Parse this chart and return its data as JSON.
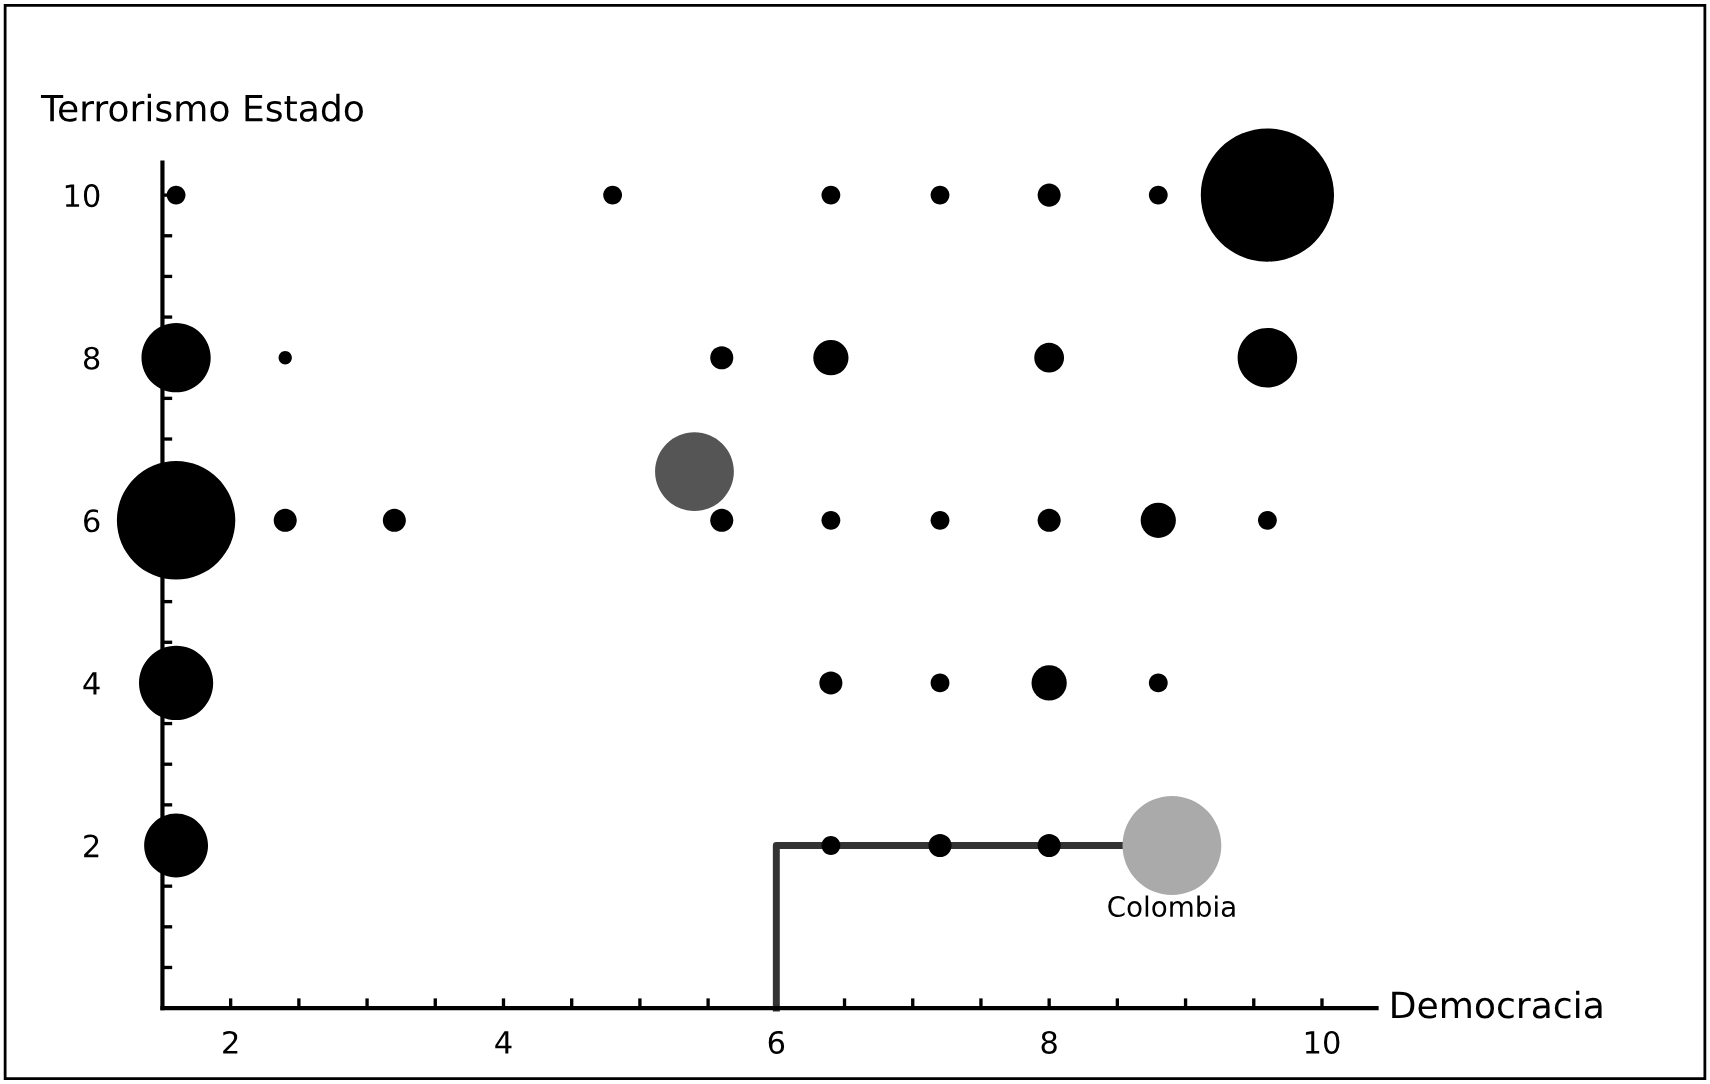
{
  "chart_data": {
    "type": "bubble",
    "xlabel": "Democracia",
    "ylabel": "Terrorismo Estado",
    "xlim": [
      1.5,
      10.4
    ],
    "ylim": [
      0,
      10.4
    ],
    "xticks": [
      2,
      {
        "value": 2.5,
        "label": null
      },
      {
        "value": 3,
        "label": null
      },
      {
        "value": 3.5,
        "label": null
      },
      4,
      {
        "value": 4.5,
        "label": null
      },
      {
        "value": 5,
        "label": null
      },
      {
        "value": 5.5,
        "label": null
      },
      6,
      {
        "value": 6.5,
        "label": null
      },
      {
        "value": 7,
        "label": null
      },
      {
        "value": 7.5,
        "label": null
      },
      8,
      {
        "value": 8.5,
        "label": null
      },
      {
        "value": 9,
        "label": null
      },
      {
        "value": 9.5,
        "label": null
      },
      10
    ],
    "yticks": [
      {
        "value": 0.5,
        "label": null
      },
      {
        "value": 1,
        "label": null
      },
      {
        "value": 1.5,
        "label": null
      },
      2,
      {
        "value": 2.5,
        "label": null
      },
      {
        "value": 3,
        "label": null
      },
      {
        "value": 3.5,
        "label": null
      },
      4,
      {
        "value": 4.5,
        "label": null
      },
      {
        "value": 5,
        "label": null
      },
      {
        "value": 5.5,
        "label": null
      },
      6,
      {
        "value": 6.5,
        "label": null
      },
      {
        "value": 7,
        "label": null
      },
      {
        "value": 7.5,
        "label": null
      },
      8,
      {
        "value": 8.5,
        "label": null
      },
      {
        "value": 9,
        "label": null
      },
      {
        "value": 9.5,
        "label": null
      },
      10
    ],
    "grid": false,
    "annotations": [
      {
        "text": "Colombia",
        "x": 8.9,
        "y": 2
      }
    ],
    "series": [
      {
        "color": "#000000",
        "x": [
          1.6,
          4.8,
          6.4,
          7.2,
          8.0,
          8.8,
          9.6,
          1.6,
          2.4,
          5.6,
          6.4,
          8.0,
          9.6,
          1.6,
          2.4,
          3.2,
          5.6,
          6.4,
          7.2,
          8.0,
          8.8,
          9.6,
          1.6,
          6.4,
          7.2,
          8.0,
          8.8,
          1.6,
          6.4,
          7.2,
          8.0
        ],
        "values": [
          10,
          10,
          10,
          10,
          10,
          10,
          10,
          8,
          8,
          8,
          8,
          8,
          8,
          6,
          6,
          6,
          6,
          6,
          6,
          6,
          6,
          6,
          4,
          4,
          4,
          4,
          4,
          2,
          2,
          2,
          2
        ],
        "sizes": [
          0.02,
          0.02,
          0.02,
          0.02,
          0.03,
          0.02,
          1,
          0.27,
          0.01,
          0.03,
          0.07,
          0.05,
          0.2,
          0.79,
          0.03,
          0.03,
          0.03,
          0.02,
          0.02,
          0.03,
          0.07,
          0.02,
          0.31,
          0.03,
          0.02,
          0.07,
          0.02,
          0.23,
          0.02,
          0.03,
          0.03
        ]
      },
      {
        "color": "#555555",
        "x": [
          5.4
        ],
        "values": [
          6.6
        ],
        "sizes": [
          0.35
        ]
      },
      {
        "color": "#aaaaaa",
        "x": [
          8.9
        ],
        "values": [
          2
        ],
        "sizes": [
          0.55
        ]
      },
      {
        "type": "line",
        "color": "#333333",
        "line_style": "solid",
        "x": [
          6,
          6,
          8.6
        ],
        "values": [
          0,
          2,
          2
        ]
      }
    ]
  }
}
